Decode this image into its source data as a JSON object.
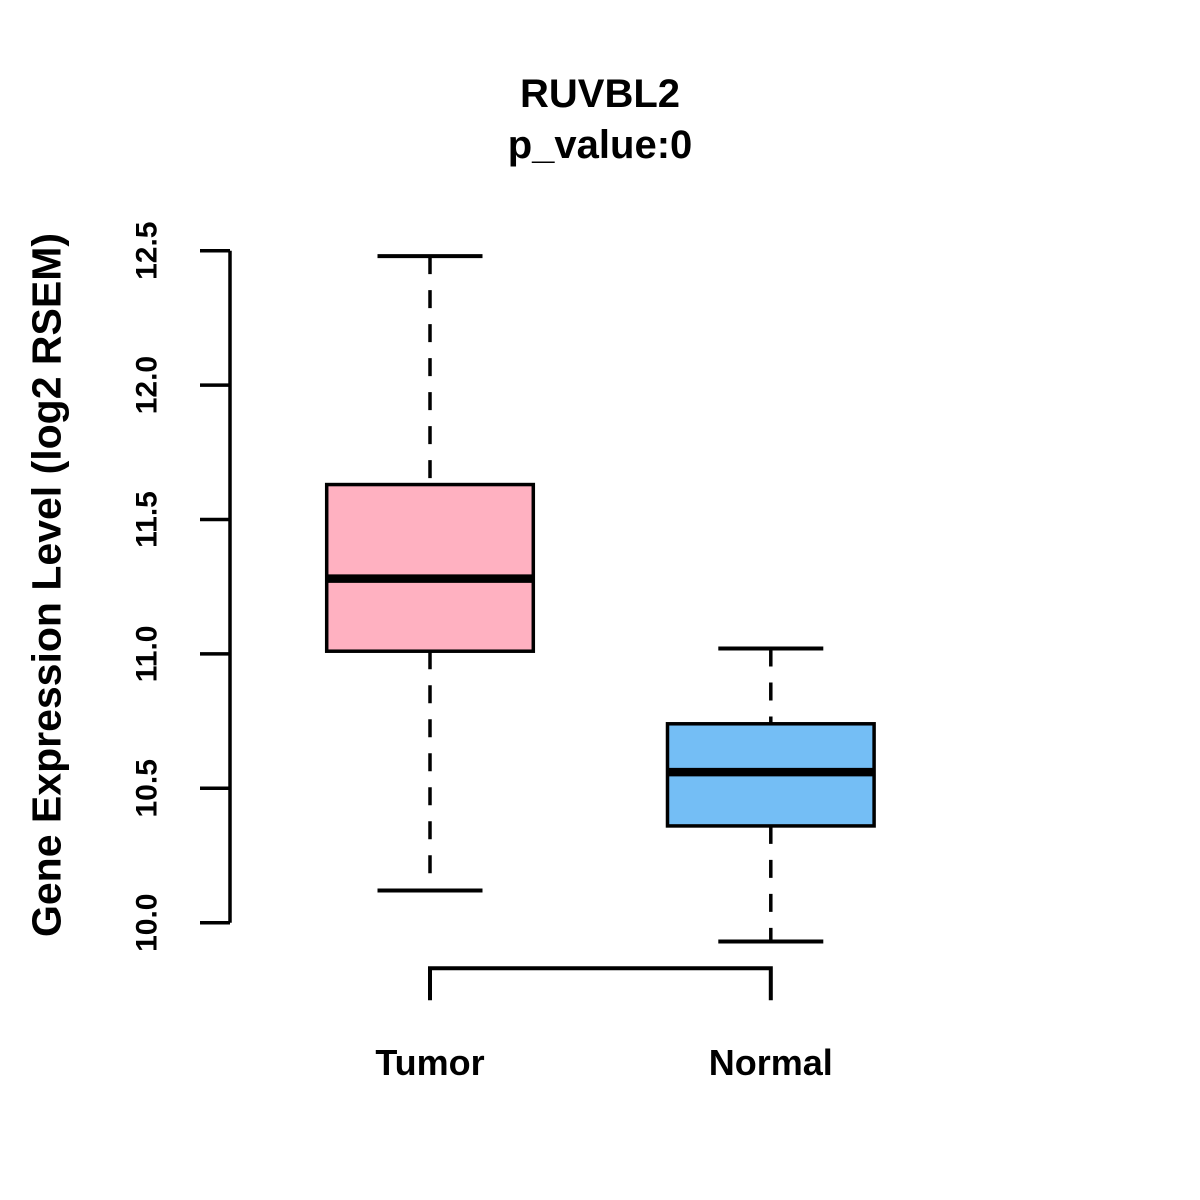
{
  "chart_data": {
    "type": "boxplot",
    "title": "RUVBL2",
    "subtitle": "p_value:0",
    "ylabel": "Gene Expression Level (log2 RSEM)",
    "xlabel": "",
    "categories": [
      "Tumor",
      "Normal"
    ],
    "yticks": [
      10.0,
      10.5,
      11.0,
      11.5,
      12.0,
      12.5
    ],
    "ytick_labels": [
      "10.0",
      "10.5",
      "11.0",
      "11.5",
      "12.0",
      "12.5"
    ],
    "ylim": [
      9.8,
      12.6
    ],
    "grid": false,
    "legend": "none",
    "series": [
      {
        "name": "Tumor",
        "whisker_low": 10.12,
        "q1": 11.01,
        "median": 11.28,
        "q3": 11.63,
        "whisker_high": 12.48,
        "color": "#FFB1C1"
      },
      {
        "name": "Normal",
        "whisker_low": 9.93,
        "q1": 10.36,
        "median": 10.56,
        "q3": 10.74,
        "whisker_high": 11.02,
        "color": "#74BEF5"
      }
    ],
    "line_color": "#000000",
    "background_color": "#FFFFFF"
  }
}
